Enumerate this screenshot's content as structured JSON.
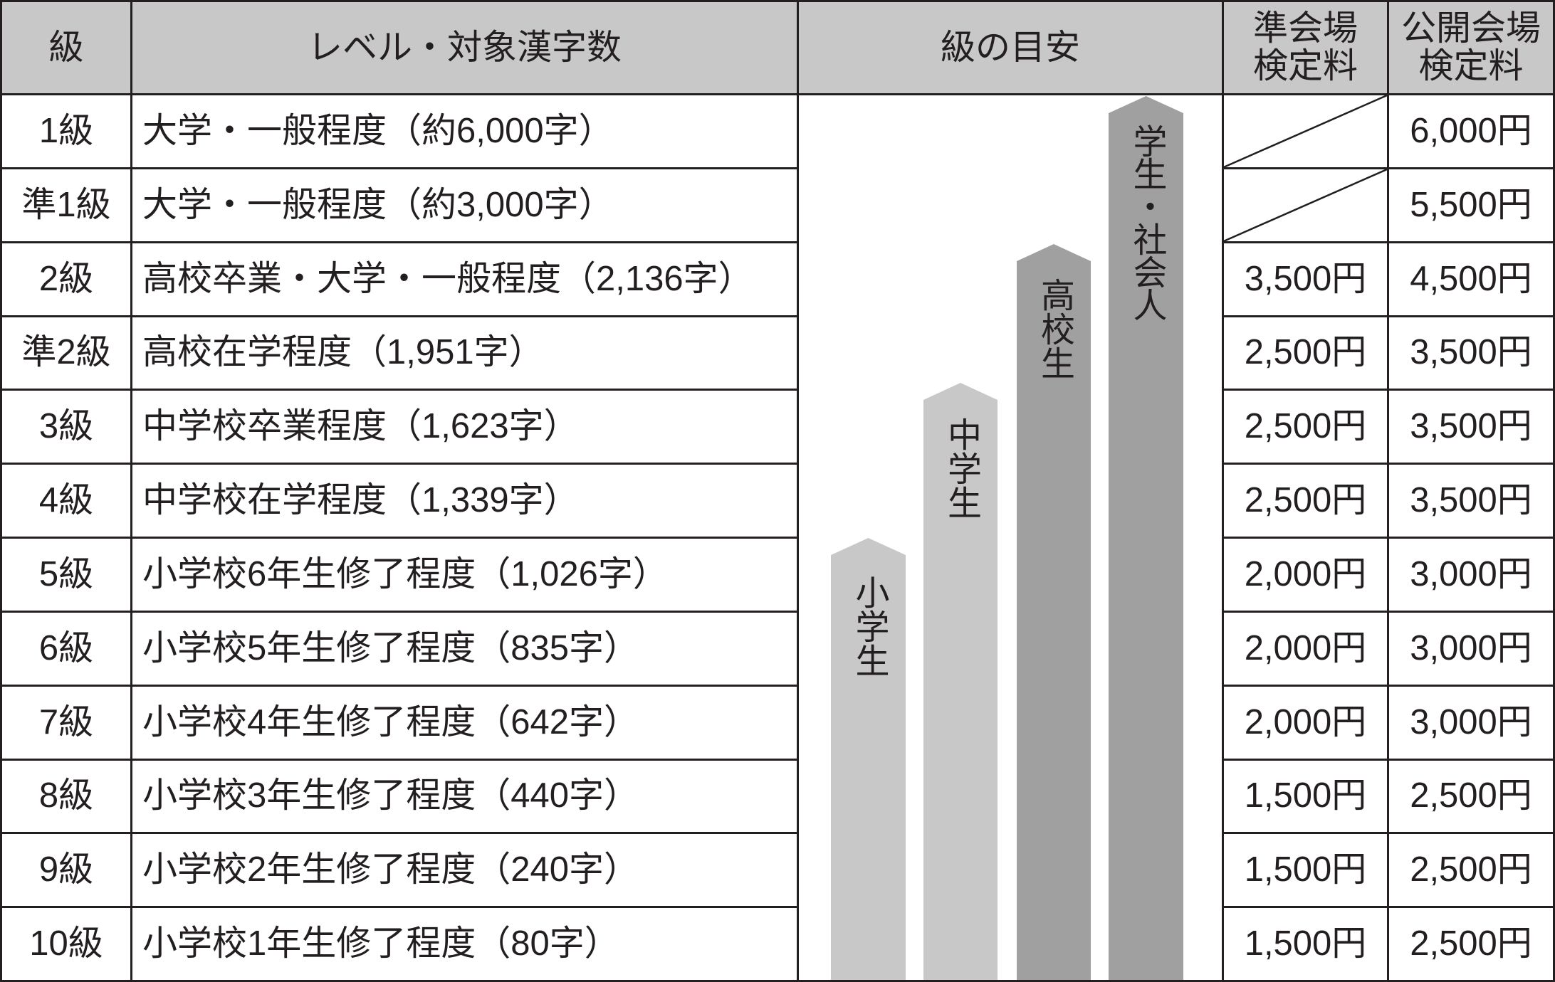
{
  "header": {
    "grade": "級",
    "level": "レベル・対象漢字数",
    "guide": "級の目安",
    "sub_venue_fee": [
      "準会場",
      "検定料"
    ],
    "public_venue_fee": [
      "公開会場",
      "検定料"
    ]
  },
  "rows": [
    {
      "grade": "1級",
      "level": "大学・一般程度（約6,000字）",
      "sub_fee": null,
      "public_fee": "6,000円"
    },
    {
      "grade": "準1級",
      "level": "大学・一般程度（約3,000字）",
      "sub_fee": null,
      "public_fee": "5,500円"
    },
    {
      "grade": "2級",
      "level": "高校卒業・大学・一般程度（2,136字）",
      "sub_fee": "3,500円",
      "public_fee": "4,500円"
    },
    {
      "grade": "準2級",
      "level": "高校在学程度（1,951字）",
      "sub_fee": "2,500円",
      "public_fee": "3,500円"
    },
    {
      "grade": "3級",
      "level": "中学校卒業程度（1,623字）",
      "sub_fee": "2,500円",
      "public_fee": "3,500円"
    },
    {
      "grade": "4級",
      "level": "中学校在学程度（1,339字）",
      "sub_fee": "2,500円",
      "public_fee": "3,500円"
    },
    {
      "grade": "5級",
      "level": "小学校6年生修了程度（1,026字）",
      "sub_fee": "2,000円",
      "public_fee": "3,000円"
    },
    {
      "grade": "6級",
      "level": "小学校5年生修了程度（835字）",
      "sub_fee": "2,000円",
      "public_fee": "3,000円"
    },
    {
      "grade": "7級",
      "level": "小学校4年生修了程度（642字）",
      "sub_fee": "2,000円",
      "public_fee": "3,000円"
    },
    {
      "grade": "8級",
      "level": "小学校3年生修了程度（440字）",
      "sub_fee": "1,500円",
      "public_fee": "2,500円"
    },
    {
      "grade": "9級",
      "level": "小学校2年生修了程度（240字）",
      "sub_fee": "1,500円",
      "public_fee": "2,500円"
    },
    {
      "grade": "10級",
      "level": "小学校1年生修了程度（80字）",
      "sub_fee": "1,500円",
      "public_fee": "2,500円"
    }
  ],
  "guide_bars": [
    {
      "label": "小学生",
      "color": "#c8c8c8"
    },
    {
      "label": "中学生",
      "color": "#c8c8c8"
    },
    {
      "label": "高校生",
      "color": "#a0a0a0"
    },
    {
      "label": "学生・社会人",
      "color": "#a0a0a0"
    }
  ],
  "colors": {
    "line": "#231f20",
    "header_bg": "#c8c8c8",
    "text": "#231f20"
  }
}
